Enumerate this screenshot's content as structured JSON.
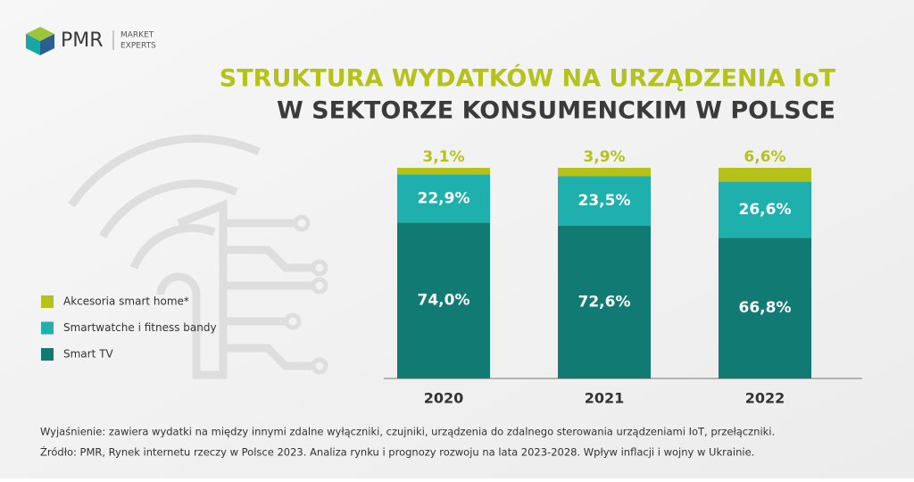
{
  "logo": {
    "name": "PMR",
    "tagline": [
      "MARKET",
      "EXPERTS"
    ]
  },
  "chart_data": {
    "type": "stacked_bar",
    "title": "STRUKTURA WYDATKÓW NA URZĄDZENIA IoT",
    "subtitle": "W SEKTORZE KONSUMENCKIM W POLSCE",
    "categories": [
      "2020",
      "2021",
      "2022"
    ],
    "series": [
      {
        "name": "Smart TV",
        "color": "#117a72",
        "values": [
          74.0,
          72.6,
          66.8
        ],
        "value_labels": [
          "74,0%",
          "72,6%",
          "66,8%"
        ]
      },
      {
        "name": "Smartwatche i fitness bandy",
        "color": "#1fb0ae",
        "values": [
          22.9,
          23.5,
          26.6
        ],
        "value_labels": [
          "22,9%",
          "23,5%",
          "26,6%"
        ]
      },
      {
        "name": "Akcesoria smart home*",
        "color": "#b4c21a",
        "values": [
          3.1,
          3.9,
          6.6
        ],
        "value_labels": [
          "3,1%",
          "3,9%",
          "6,6%"
        ]
      }
    ],
    "notes": [
      "Wyjaśnienie: zawiera wydatki na między innymi zdalne wyłączniki, czujniki, urządzenia do zdalnego sterowania urządzeniami IoT, przełączniki.",
      "Źródło: PMR, Rynek internetu rzeczy w Polsce 2023. Analiza rynku i prognozy rozwoju na lata 2023-2028. Wpływ inflacji i wojny w Ukrainie."
    ]
  }
}
